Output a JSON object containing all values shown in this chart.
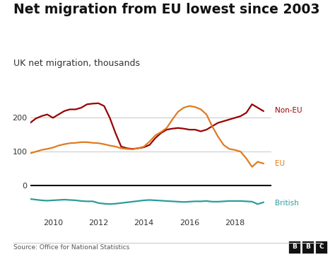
{
  "title": "Net migration from EU lowest since 2003",
  "subtitle": "UK net migration, thousands",
  "source": "Source: Office for National Statistics",
  "bbc_label": "BBC",
  "background_color": "#ffffff",
  "title_fontsize": 13.5,
  "subtitle_fontsize": 9,
  "years": [
    2009.0,
    2009.25,
    2009.5,
    2009.75,
    2010.0,
    2010.25,
    2010.5,
    2010.75,
    2011.0,
    2011.25,
    2011.5,
    2011.75,
    2012.0,
    2012.25,
    2012.5,
    2012.75,
    2013.0,
    2013.25,
    2013.5,
    2013.75,
    2014.0,
    2014.25,
    2014.5,
    2014.75,
    2015.0,
    2015.25,
    2015.5,
    2015.75,
    2016.0,
    2016.25,
    2016.5,
    2016.75,
    2017.0,
    2017.25,
    2017.5,
    2017.75,
    2018.0,
    2018.25,
    2018.5,
    2018.75,
    2019.0,
    2019.25
  ],
  "non_eu": [
    185,
    198,
    205,
    210,
    200,
    210,
    220,
    225,
    225,
    230,
    240,
    242,
    243,
    235,
    200,
    155,
    115,
    110,
    108,
    110,
    113,
    120,
    140,
    155,
    165,
    168,
    170,
    168,
    165,
    165,
    160,
    165,
    175,
    185,
    190,
    195,
    200,
    205,
    215,
    240,
    230,
    220
  ],
  "eu": [
    95,
    100,
    105,
    108,
    112,
    118,
    122,
    125,
    126,
    128,
    128,
    126,
    125,
    122,
    118,
    115,
    110,
    108,
    107,
    110,
    115,
    130,
    148,
    158,
    170,
    195,
    218,
    230,
    235,
    232,
    225,
    210,
    175,
    145,
    120,
    108,
    105,
    100,
    80,
    55,
    70,
    65
  ],
  "british": [
    -40,
    -42,
    -44,
    -45,
    -44,
    -43,
    -42,
    -43,
    -44,
    -46,
    -47,
    -47,
    -52,
    -54,
    -55,
    -54,
    -52,
    -50,
    -48,
    -46,
    -44,
    -43,
    -44,
    -45,
    -46,
    -47,
    -48,
    -49,
    -48,
    -47,
    -47,
    -46,
    -48,
    -48,
    -47,
    -46,
    -46,
    -46,
    -47,
    -48,
    -55,
    -50
  ],
  "non_eu_color": "#990000",
  "eu_color": "#e07b20",
  "british_color": "#2a9d9d",
  "zero_line_color": "#111111",
  "grid_color": "#cccccc",
  "ylim": [
    -90,
    290
  ],
  "yticks": [
    0,
    100,
    200
  ],
  "xticks": [
    2010,
    2012,
    2014,
    2016,
    2018
  ],
  "xlim": [
    2009.0,
    2019.6
  ]
}
